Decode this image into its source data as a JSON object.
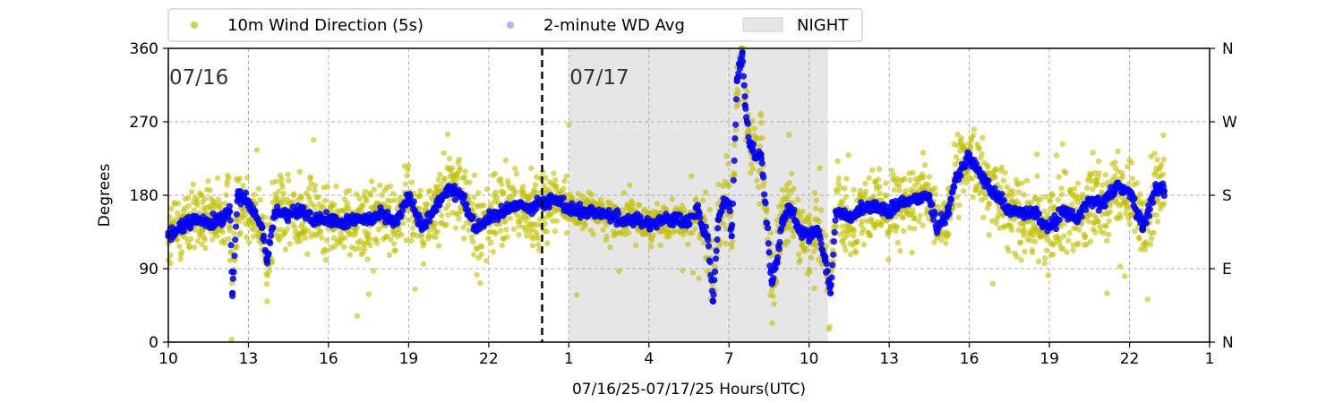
{
  "chart_data": {
    "type": "scatter",
    "xlabel": "07/16/25-07/17/25  Hours(UTC)",
    "ylabel": "Degrees",
    "xlim": [
      10,
      49
    ],
    "ylim": [
      0,
      360
    ],
    "x_ticks": [
      {
        "value": 10,
        "label": "10"
      },
      {
        "value": 13,
        "label": "13"
      },
      {
        "value": 16,
        "label": "16"
      },
      {
        "value": 19,
        "label": "19"
      },
      {
        "value": 22,
        "label": "22"
      },
      {
        "value": 25,
        "label": "1"
      },
      {
        "value": 28,
        "label": "4"
      },
      {
        "value": 31,
        "label": "7"
      },
      {
        "value": 34,
        "label": "10"
      },
      {
        "value": 37,
        "label": "13"
      },
      {
        "value": 40,
        "label": "16"
      },
      {
        "value": 43,
        "label": "19"
      },
      {
        "value": 46,
        "label": "22"
      },
      {
        "value": 49,
        "label": "1"
      }
    ],
    "y_ticks": [
      0,
      90,
      180,
      270,
      360
    ],
    "y2_ticks": [
      {
        "value": 0,
        "label": "N"
      },
      {
        "value": 90,
        "label": "E"
      },
      {
        "value": 180,
        "label": "S"
      },
      {
        "value": 270,
        "label": "W"
      },
      {
        "value": 360,
        "label": "N"
      }
    ],
    "grid": true,
    "day_divider_x": 24,
    "date_labels": [
      {
        "x": 10,
        "text": "07/16"
      },
      {
        "x": 25,
        "text": "07/17"
      }
    ],
    "night_band": [
      25,
      34.7
    ],
    "legend": [
      {
        "name": "10m Wind Direction (5s)",
        "color": "#bfbf00",
        "kind": "dot"
      },
      {
        "name": "2-minute WD Avg",
        "color": "#0000ff",
        "kind": "dot-light"
      },
      {
        "name": "NIGHT",
        "color": "#e6e6e6",
        "kind": "patch"
      }
    ],
    "legend_placement": "top, outside plot",
    "series": [
      {
        "name": "2-minute WD Avg",
        "color": "#0000ff",
        "points": [
          [
            10.0,
            130
          ],
          [
            10.5,
            140
          ],
          [
            11.0,
            150
          ],
          [
            11.5,
            145
          ],
          [
            12.0,
            150
          ],
          [
            12.3,
            160
          ],
          [
            12.4,
            60
          ],
          [
            12.6,
            180
          ],
          [
            13.0,
            170
          ],
          [
            13.5,
            140
          ],
          [
            13.7,
            100
          ],
          [
            14.0,
            160
          ],
          [
            14.5,
            155
          ],
          [
            15.0,
            160
          ],
          [
            15.5,
            150
          ],
          [
            16.0,
            150
          ],
          [
            16.5,
            145
          ],
          [
            17.0,
            150
          ],
          [
            17.5,
            150
          ],
          [
            18.0,
            160
          ],
          [
            18.5,
            145
          ],
          [
            19.0,
            180
          ],
          [
            19.5,
            140
          ],
          [
            20.0,
            165
          ],
          [
            20.5,
            190
          ],
          [
            21.0,
            180
          ],
          [
            21.5,
            140
          ],
          [
            22.0,
            150
          ],
          [
            22.5,
            160
          ],
          [
            23.0,
            170
          ],
          [
            23.5,
            165
          ],
          [
            24.0,
            170
          ],
          [
            24.5,
            175
          ],
          [
            25.0,
            165
          ],
          [
            25.5,
            160
          ],
          [
            26.0,
            160
          ],
          [
            26.5,
            155
          ],
          [
            27.0,
            150
          ],
          [
            27.5,
            150
          ],
          [
            28.0,
            145
          ],
          [
            28.5,
            150
          ],
          [
            29.0,
            150
          ],
          [
            29.5,
            145
          ],
          [
            29.8,
            165
          ],
          [
            30.0,
            140
          ],
          [
            30.2,
            130
          ],
          [
            30.4,
            50
          ],
          [
            30.6,
            150
          ],
          [
            30.8,
            170
          ],
          [
            31.0,
            170
          ],
          [
            31.1,
            130
          ],
          [
            31.3,
            320
          ],
          [
            31.4,
            340
          ],
          [
            31.5,
            355
          ],
          [
            31.6,
            290
          ],
          [
            31.8,
            240
          ],
          [
            32.0,
            225
          ],
          [
            32.2,
            230
          ],
          [
            32.6,
            75
          ],
          [
            32.8,
            100
          ],
          [
            33.0,
            150
          ],
          [
            33.3,
            165
          ],
          [
            33.6,
            140
          ],
          [
            34.0,
            130
          ],
          [
            34.3,
            140
          ],
          [
            34.6,
            100
          ],
          [
            34.8,
            60
          ],
          [
            35.0,
            160
          ],
          [
            35.5,
            150
          ],
          [
            36.0,
            165
          ],
          [
            36.5,
            165
          ],
          [
            37.0,
            160
          ],
          [
            37.5,
            170
          ],
          [
            38.0,
            175
          ],
          [
            38.5,
            180
          ],
          [
            38.8,
            140
          ],
          [
            39.0,
            150
          ],
          [
            39.2,
            160
          ],
          [
            39.5,
            200
          ],
          [
            40.0,
            230
          ],
          [
            40.5,
            200
          ],
          [
            41.0,
            180
          ],
          [
            41.5,
            160
          ],
          [
            42.0,
            160
          ],
          [
            42.5,
            155
          ],
          [
            43.0,
            140
          ],
          [
            43.5,
            160
          ],
          [
            44.0,
            150
          ],
          [
            44.5,
            175
          ],
          [
            45.0,
            170
          ],
          [
            45.5,
            190
          ],
          [
            46.0,
            185
          ],
          [
            46.5,
            140
          ],
          [
            47.0,
            190
          ],
          [
            47.3,
            185
          ]
        ]
      }
    ]
  }
}
